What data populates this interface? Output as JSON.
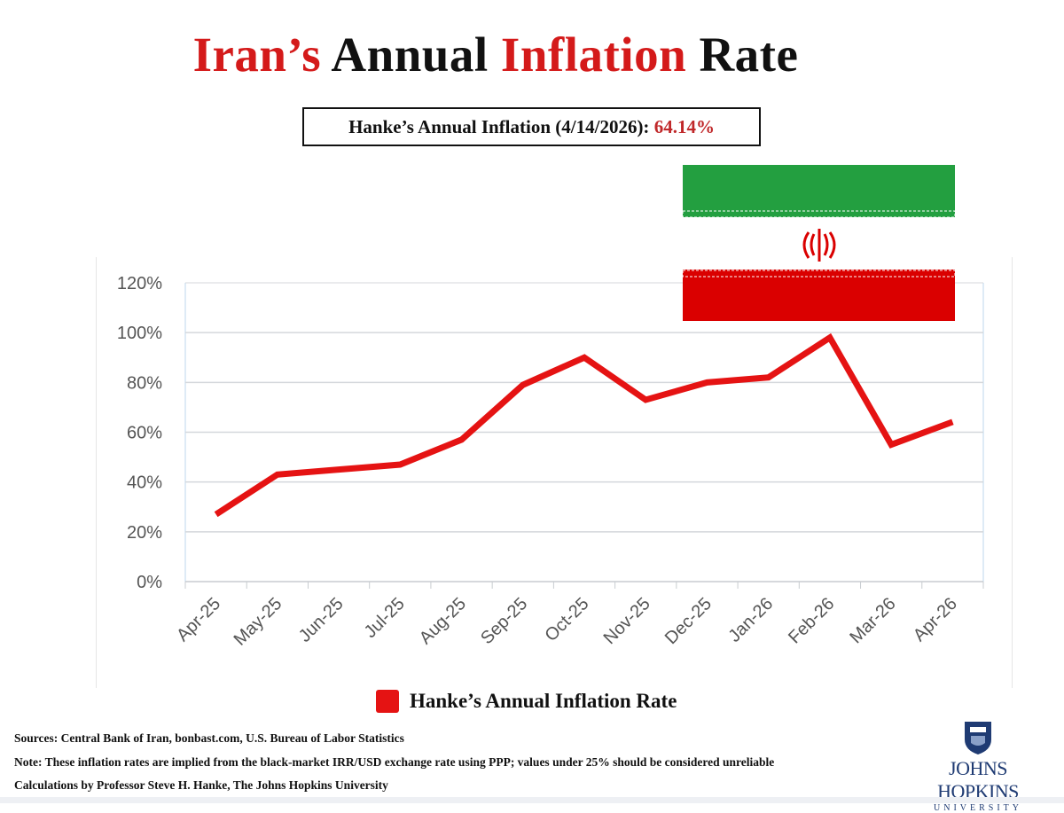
{
  "title": {
    "part1": "Iran’s",
    "part2": "Annual",
    "part3": "Inflation",
    "part4": "Rate"
  },
  "subtitle": {
    "label": "Hanke’s Annual Inflation (4/14/2026):",
    "value": "64.14%"
  },
  "colors": {
    "series": "#e51313",
    "title_red": "#d41a1a",
    "flag_green": "#239f40",
    "flag_red": "#da0000"
  },
  "icons": {
    "flag": "iran-flag-icon",
    "logo": "johns-hopkins-shield-icon"
  },
  "chart_data": {
    "type": "line",
    "categories": [
      "Apr-25",
      "May-25",
      "Jun-25",
      "Jul-25",
      "Aug-25",
      "Sep-25",
      "Oct-25",
      "Nov-25",
      "Dec-25",
      "Jan-26",
      "Feb-26",
      "Mar-26",
      "Apr-26"
    ],
    "series": [
      {
        "name": "Hanke’s Annual Inflation Rate",
        "values": [
          27,
          43,
          45,
          47,
          57,
          79,
          90,
          73,
          80,
          82,
          98,
          55,
          64.14
        ]
      }
    ],
    "yticks": [
      "0%",
      "20%",
      "40%",
      "60%",
      "80%",
      "100%",
      "120%"
    ],
    "ylim": [
      0,
      120
    ],
    "grid": true,
    "legend": "bottom"
  },
  "footer": {
    "sources": "Sources: Central Bank of Iran, bonbast.com, U.S. Bureau of Labor Statistics",
    "note": "Note: These inflation rates are implied from the black-market IRR/USD exchange rate using PPP; values under 25% should be considered unreliable",
    "calc": "Calculations by Professor Steve H. Hanke, The Johns Hopkins University",
    "logo_name": "JOHNS HOPKINS",
    "logo_sub": "UNIVERSITY"
  }
}
